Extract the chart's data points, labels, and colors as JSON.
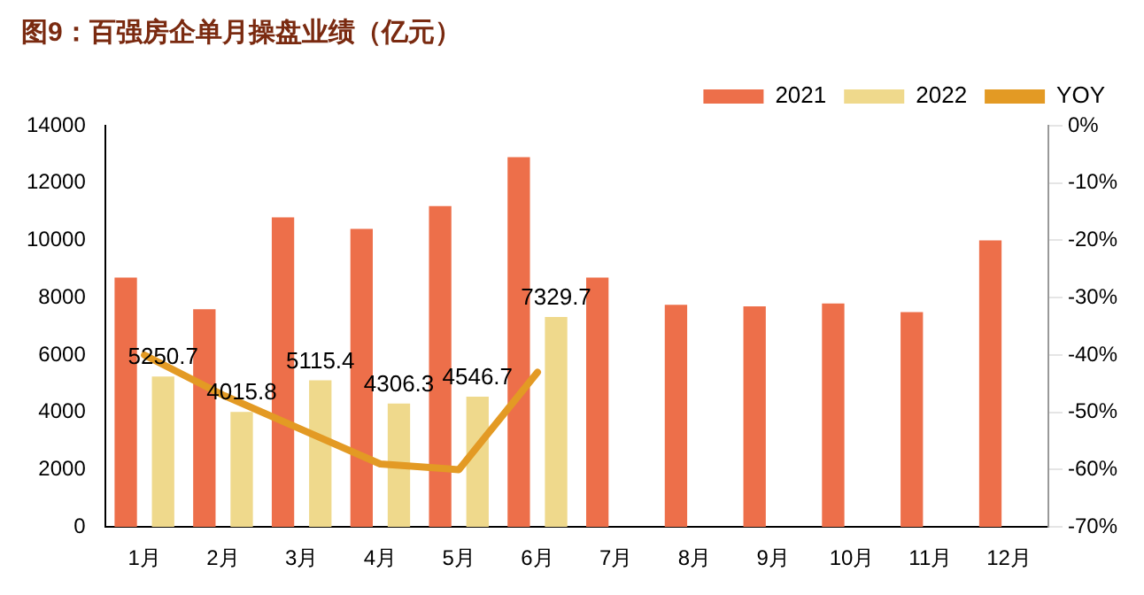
{
  "chart_data": {
    "type": "bar",
    "title": "图9：百强房企单月操盘业绩（亿元）",
    "categories": [
      "1月",
      "2月",
      "3月",
      "4月",
      "5月",
      "6月",
      "7月",
      "8月",
      "9月",
      "10月",
      "11月",
      "12月"
    ],
    "series": [
      {
        "name": "2021",
        "color": "#ed6f4a",
        "values": [
          8700,
          7600,
          10800,
          10400,
          11200,
          12900,
          8700,
          7750,
          7700,
          7800,
          7500,
          10000
        ]
      },
      {
        "name": "2022",
        "color": "#efd98c",
        "values": [
          5250.7,
          4015.8,
          5115.4,
          4306.3,
          4546.7,
          7329.7,
          null,
          null,
          null,
          null,
          null,
          null
        ],
        "value_labels": [
          "5250.7",
          "4015.8",
          "5115.4",
          "4306.3",
          "4546.7",
          "7329.7",
          null,
          null,
          null,
          null,
          null,
          null
        ]
      },
      {
        "name": "YOY",
        "type": "line",
        "axis": "y2",
        "color": "#e39a24",
        "values": [
          -40,
          -47,
          -53,
          -59,
          -60,
          -43,
          null,
          null,
          null,
          null,
          null,
          null
        ]
      }
    ],
    "ylim": [
      0,
      14000
    ],
    "yticks": [
      0,
      2000,
      4000,
      6000,
      8000,
      10000,
      12000,
      14000
    ],
    "y2lim": [
      -70,
      0
    ],
    "y2ticks": [
      {
        "value": -70,
        "label": "-70%"
      },
      {
        "value": -60,
        "label": "-60%"
      },
      {
        "value": -50,
        "label": "-50%"
      },
      {
        "value": -40,
        "label": "-40%"
      },
      {
        "value": -30,
        "label": "-30%"
      },
      {
        "value": -20,
        "label": "-20%"
      },
      {
        "value": -10,
        "label": "-10%"
      },
      {
        "value": 0,
        "label": "0%"
      }
    ],
    "legend": "top right",
    "grid": false,
    "marker": "none"
  }
}
